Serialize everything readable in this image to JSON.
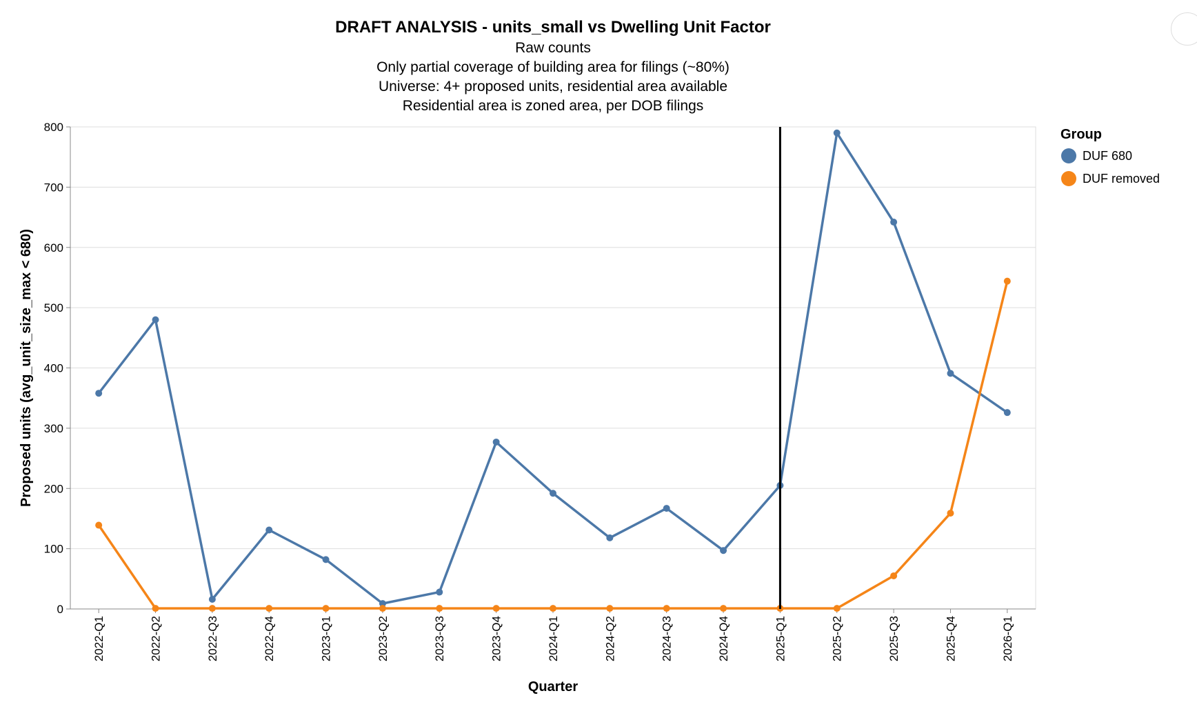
{
  "chart_data": {
    "type": "line",
    "title": "DRAFT ANALYSIS - units_small vs Dwelling Unit Factor",
    "subtitle": [
      "Raw counts",
      "Only partial coverage of building area for filings (~80%)",
      "Universe: 4+ proposed units, residential area available",
      "Residential area is zoned area, per DOB filings"
    ],
    "xlabel": "Quarter",
    "ylabel": "Proposed units (avg_unit_size_max < 680)",
    "ylim": [
      0,
      800
    ],
    "yticks": [
      0,
      100,
      200,
      300,
      400,
      500,
      600,
      700,
      800
    ],
    "grid": true,
    "categories": [
      "2022-Q1",
      "2022-Q2",
      "2022-Q3",
      "2022-Q4",
      "2023-Q1",
      "2023-Q2",
      "2023-Q3",
      "2023-Q4",
      "2024-Q1",
      "2024-Q2",
      "2024-Q3",
      "2024-Q4",
      "2025-Q1",
      "2025-Q2",
      "2025-Q3",
      "2025-Q4",
      "2026-Q1"
    ],
    "series": [
      {
        "name": "DUF 680",
        "color": "#4c78a8",
        "values": [
          358,
          480,
          16,
          131,
          82,
          9,
          28,
          277,
          192,
          118,
          167,
          97,
          205,
          790,
          642,
          391,
          326
        ]
      },
      {
        "name": "DUF removed",
        "color": "#f58518",
        "values": [
          139,
          1,
          1,
          1,
          1,
          1,
          1,
          1,
          1,
          1,
          1,
          1,
          1,
          1,
          55,
          159,
          544
        ]
      }
    ],
    "reference_line": {
      "x": "2025-Q1",
      "color": "#000000"
    },
    "legend": {
      "title": "Group",
      "placement": "right"
    }
  }
}
